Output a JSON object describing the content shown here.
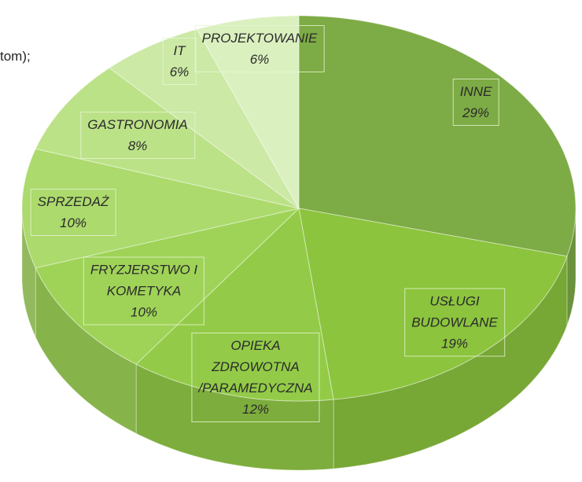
{
  "chart_data": {
    "type": "pie3d",
    "annotation": "tom);",
    "categories": [
      "INNE",
      "USŁUGI\nBUDOWLANE",
      "OPIEKA\nZDROWOTNA\n/PARAMEDYCZNA",
      "FRYZJERSTWO I\nKOMETYKA",
      "SPRZEDAŻ",
      "GASTRONOMIA",
      "IT",
      "PROJEKTOWANIE"
    ],
    "values": [
      29,
      19,
      12,
      10,
      10,
      8,
      6,
      6
    ],
    "value_labels": [
      "29%",
      "19%",
      "12%",
      "10%",
      "10%",
      "8%",
      "6%",
      "6%"
    ],
    "colors": [
      "#7dab45",
      "#8cc43e",
      "#93cb48",
      "#9fd358",
      "#acda6d",
      "#bce288",
      "#cce9a6",
      "#dbf0bf"
    ]
  }
}
